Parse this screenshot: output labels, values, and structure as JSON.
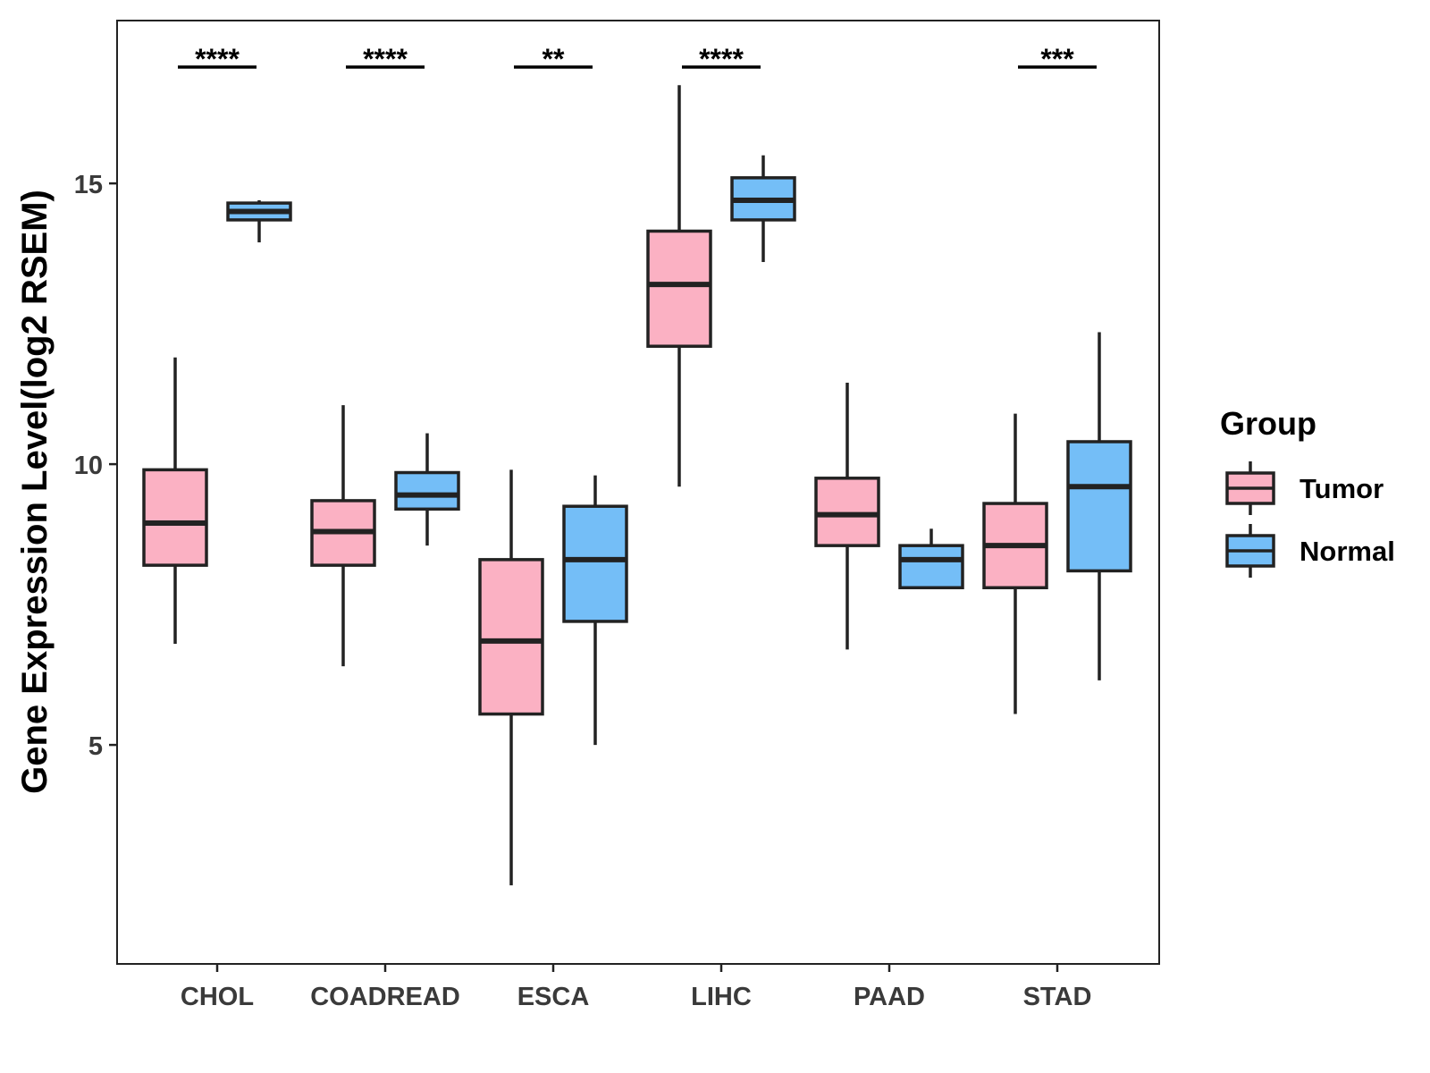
{
  "chart_data": {
    "type": "boxplot",
    "title": "",
    "xlabel": "",
    "ylabel": "Gene Expression Level(log2 RSEM)",
    "ylim": [
      1.1,
      17.9
    ],
    "yticks": [
      5,
      10,
      15
    ],
    "grid": false,
    "legend_position": "right",
    "categories": [
      "CHOL",
      "COADREAD",
      "ESCA",
      "LIHC",
      "PAAD",
      "STAD"
    ],
    "significance": [
      "****",
      "****",
      "**",
      "****",
      "",
      "***"
    ],
    "series": [
      {
        "name": "Tumor",
        "color": "#FBB1C3",
        "boxes": [
          {
            "min": 6.8,
            "q1": 8.2,
            "median": 8.95,
            "q3": 9.9,
            "max": 11.9
          },
          {
            "min": 6.4,
            "q1": 8.2,
            "median": 8.8,
            "q3": 9.35,
            "max": 11.05
          },
          {
            "min": 2.5,
            "q1": 5.55,
            "median": 6.85,
            "q3": 8.3,
            "max": 9.9
          },
          {
            "min": 9.6,
            "q1": 12.1,
            "median": 13.2,
            "q3": 14.15,
            "max": 16.75
          },
          {
            "min": 6.7,
            "q1": 8.55,
            "median": 9.1,
            "q3": 9.75,
            "max": 11.45
          },
          {
            "min": 5.55,
            "q1": 7.8,
            "median": 8.55,
            "q3": 9.3,
            "max": 10.9
          }
        ]
      },
      {
        "name": "Normal",
        "color": "#74BEF7",
        "boxes": [
          {
            "min": 13.95,
            "q1": 14.35,
            "median": 14.5,
            "q3": 14.65,
            "max": 14.7
          },
          {
            "min": 8.55,
            "q1": 9.2,
            "median": 9.45,
            "q3": 9.85,
            "max": 10.55
          },
          {
            "min": 5.0,
            "q1": 7.2,
            "median": 8.3,
            "q3": 9.25,
            "max": 9.8
          },
          {
            "min": 13.6,
            "q1": 14.35,
            "median": 14.7,
            "q3": 15.1,
            "max": 15.5
          },
          {
            "min": 7.8,
            "q1": 7.8,
            "median": 8.3,
            "q3": 8.55,
            "max": 8.85
          },
          {
            "min": 6.15,
            "q1": 8.1,
            "median": 9.6,
            "q3": 10.4,
            "max": 12.35
          }
        ]
      }
    ],
    "legend": {
      "title": "Group",
      "items": [
        "Tumor",
        "Normal"
      ]
    }
  }
}
